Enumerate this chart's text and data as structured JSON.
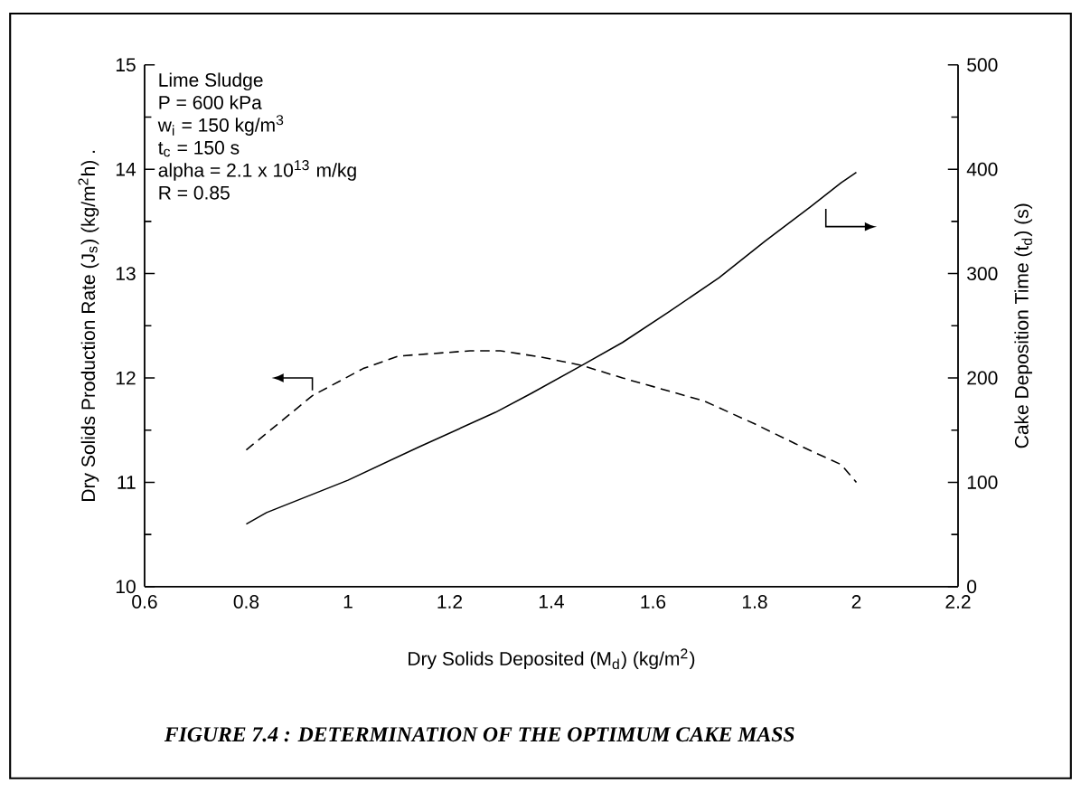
{
  "chart_data": {
    "type": "line",
    "title": "FIGURE 7.4 : DETERMINATION OF THE OPTIMUM CAKE MASS",
    "xlabel": "Dry Solids Deposited (M$_{d}$)  (kg/m$^{2}$)",
    "ylabel": "Dry Solids Production Rate (J$_{s}$) (kg/m$^{2}$h) .",
    "y2label": "Cake Deposition Time (t$_{d}$) (s)",
    "annotations": [
      "Lime Sludge",
      "P = 600 kPa",
      "w$_{i}$ = 150 kg/m$^{3}$",
      "t$_{c}$ = 150 s",
      "alpha = 2.1 x 10$^{13}$ m/kg",
      "R = 0.85"
    ],
    "xlim": [
      0.6,
      2.2
    ],
    "xticks": [
      0.6,
      0.8,
      1,
      1.2,
      1.4,
      1.6,
      1.8,
      2,
      2.2
    ],
    "ylim": [
      10,
      15
    ],
    "yticks": [
      10,
      11,
      12,
      13,
      14,
      15
    ],
    "y2lim": [
      0,
      500
    ],
    "y2ticks": [
      0,
      100,
      200,
      300,
      400,
      500
    ],
    "series": [
      {
        "color": "#000000",
        "line_style": "dashed",
        "x": [
          0.8,
          0.93,
          1.03,
          1.1,
          1.24,
          1.3,
          1.38,
          1.46,
          1.54,
          1.62,
          1.7,
          1.8,
          1.88,
          1.97,
          2.0
        ],
        "values": [
          11.31,
          11.83,
          12.09,
          12.21,
          12.26,
          12.26,
          12.2,
          12.12,
          12.0,
          11.89,
          11.78,
          11.56,
          11.37,
          11.17,
          11.0
        ]
      },
      {
        "color": "#000000",
        "line_style": "solid",
        "axis": "y2",
        "x": [
          0.8,
          0.84,
          1.0,
          1.14,
          1.29,
          1.36,
          1.46,
          1.54,
          1.63,
          1.73,
          1.82,
          1.91,
          1.97,
          2.0
        ],
        "values": [
          60,
          71,
          102,
          134,
          167,
          185,
          212,
          234,
          263,
          296,
          331,
          364,
          387,
          397
        ]
      }
    ]
  }
}
